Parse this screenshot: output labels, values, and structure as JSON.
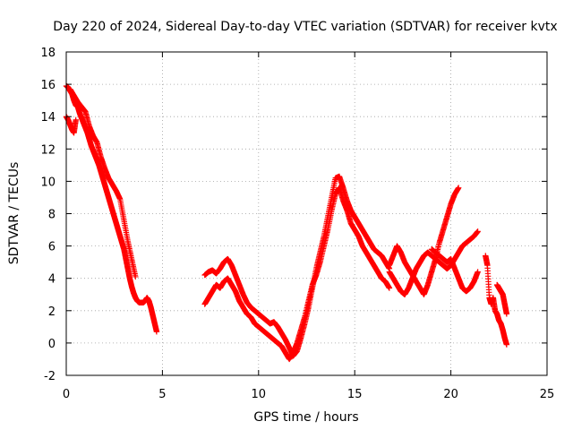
{
  "chart_data": {
    "type": "scatter",
    "title": "Day 220 of 2024, Sidereal Day-to-day VTEC variation (SDTVAR) for receiver kvtx",
    "xlabel": "GPS time / hours",
    "ylabel": "SDTVAR / TECUs",
    "xlim": [
      0,
      25
    ],
    "ylim": [
      -2,
      18
    ],
    "xticks": [
      0,
      5,
      10,
      15,
      20,
      25
    ],
    "yticks": [
      -2,
      0,
      2,
      4,
      6,
      8,
      10,
      12,
      14,
      16,
      18
    ],
    "xtick_labels": [
      "0",
      "5",
      "10",
      "15",
      "20",
      "25"
    ],
    "ytick_labels": [
      "-2",
      "0",
      "2",
      "4",
      "6",
      "8",
      "10",
      "12",
      "14",
      "16",
      "18"
    ],
    "grid": true,
    "marker": "+",
    "color": "#ff0000",
    "series": [
      {
        "name": "segment-1",
        "x": [
          0.0,
          0.1,
          0.2,
          0.3,
          0.4,
          0.5,
          0.6,
          0.7,
          0.8,
          0.9,
          1.0,
          1.1,
          1.2,
          1.3,
          1.4,
          1.5,
          1.6,
          1.7,
          1.8,
          1.9,
          2.0,
          2.1,
          2.2,
          2.3,
          2.4,
          2.5,
          2.6,
          2.7,
          2.8,
          2.9,
          3.0,
          3.1,
          3.2,
          3.3,
          3.4,
          3.5,
          3.6,
          3.7,
          3.8,
          3.9,
          4.0,
          4.1,
          4.2,
          4.3,
          4.4,
          4.5,
          4.6,
          4.7
        ],
        "y": [
          15.9,
          15.8,
          15.6,
          15.4,
          15.0,
          14.7,
          14.6,
          14.2,
          13.9,
          13.6,
          13.3,
          13.0,
          12.6,
          12.2,
          11.9,
          11.6,
          11.3,
          11.0,
          10.6,
          10.2,
          9.8,
          9.4,
          9.0,
          8.6,
          8.2,
          7.8,
          7.4,
          7.0,
          6.6,
          6.2,
          5.8,
          5.2,
          4.6,
          4.0,
          3.5,
          3.1,
          2.8,
          2.6,
          2.5,
          2.5,
          2.5,
          2.6,
          2.8,
          2.6,
          2.2,
          1.7,
          1.2,
          0.7
        ]
      },
      {
        "name": "segment-1-upper",
        "x": [
          0.2,
          0.4,
          0.6,
          0.8,
          1.0,
          1.2,
          1.4,
          1.6,
          1.8,
          2.0,
          2.2,
          2.4,
          2.6,
          2.8,
          3.0,
          3.2,
          3.4,
          3.6
        ],
        "y": [
          15.7,
          15.3,
          14.9,
          14.6,
          14.3,
          13.4,
          12.8,
          12.4,
          11.5,
          10.8,
          10.2,
          9.8,
          9.4,
          8.9,
          7.6,
          6.3,
          5.2,
          4.1
        ]
      },
      {
        "name": "segment-1-lower",
        "x": [
          0.0,
          0.1,
          0.2,
          0.3,
          0.4,
          0.5
        ],
        "y": [
          14.0,
          13.8,
          13.5,
          13.2,
          13.0,
          13.8
        ]
      },
      {
        "name": "segment-2",
        "x": [
          7.2,
          7.4,
          7.6,
          7.8,
          8.0,
          8.2,
          8.4,
          8.6,
          8.8,
          9.0,
          9.2,
          9.4,
          9.6,
          9.8,
          10.0,
          10.2,
          10.4,
          10.6,
          10.8,
          11.0,
          11.2,
          11.4,
          11.6,
          11.8,
          12.0,
          12.2,
          12.4,
          12.6,
          12.8,
          13.0,
          13.2,
          13.4,
          13.6,
          13.8,
          14.0,
          14.2,
          14.4,
          14.6,
          14.8,
          15.0,
          15.2,
          15.4,
          15.6,
          15.8,
          16.0,
          16.2,
          16.4,
          16.6,
          16.8
        ],
        "y": [
          4.2,
          4.4,
          4.5,
          4.3,
          4.6,
          5.0,
          5.2,
          4.8,
          4.2,
          3.6,
          3.0,
          2.5,
          2.2,
          2.0,
          1.8,
          1.6,
          1.4,
          1.2,
          1.3,
          1.0,
          0.6,
          0.2,
          -0.3,
          -0.8,
          -0.5,
          0.3,
          1.2,
          2.2,
          3.4,
          4.6,
          5.6,
          6.6,
          7.8,
          9.0,
          10.2,
          10.3,
          9.6,
          8.8,
          8.2,
          7.8,
          7.4,
          7.0,
          6.6,
          6.2,
          5.8,
          5.6,
          5.4,
          5.0,
          4.6
        ]
      },
      {
        "name": "segment-2-lower",
        "x": [
          7.2,
          7.4,
          7.6,
          7.8,
          8.0,
          8.2,
          8.4,
          8.6,
          8.8,
          9.0,
          9.2,
          9.4,
          9.6,
          9.8,
          10.0,
          10.2,
          10.4,
          10.6,
          10.8,
          11.0,
          11.2,
          11.4,
          11.6,
          11.8,
          12.0,
          12.2,
          12.4,
          12.6,
          12.8,
          13.0,
          13.2,
          13.4,
          13.6,
          13.8,
          14.0,
          14.2,
          14.4,
          14.6,
          14.8,
          15.0,
          15.2,
          15.4,
          15.6,
          15.8,
          16.0,
          16.2,
          16.4,
          16.6,
          16.8
        ],
        "y": [
          2.4,
          2.8,
          3.2,
          3.6,
          3.4,
          3.8,
          4.0,
          3.6,
          3.2,
          2.6,
          2.2,
          1.8,
          1.6,
          1.2,
          1.0,
          0.8,
          0.6,
          0.4,
          0.2,
          0.0,
          -0.2,
          -0.6,
          -1.0,
          -0.6,
          0.0,
          0.8,
          1.6,
          2.6,
          3.6,
          4.2,
          5.0,
          6.0,
          7.0,
          8.2,
          9.2,
          9.6,
          8.8,
          8.2,
          7.4,
          7.0,
          6.6,
          6.0,
          5.6,
          5.2,
          4.8,
          4.4,
          4.0,
          3.8,
          3.4
        ]
      },
      {
        "name": "segment-3",
        "x": [
          16.8,
          17.0,
          17.2,
          17.4,
          17.6,
          17.8,
          18.0,
          18.2,
          18.4,
          18.6,
          18.8,
          19.0,
          19.2,
          19.4,
          19.6,
          19.8,
          20.0,
          20.2,
          20.4
        ],
        "y": [
          4.8,
          5.4,
          6.0,
          5.6,
          5.0,
          4.6,
          4.2,
          3.8,
          3.4,
          3.0,
          3.6,
          4.4,
          5.2,
          6.2,
          7.0,
          7.8,
          8.6,
          9.2,
          9.6
        ]
      },
      {
        "name": "segment-3-lower",
        "x": [
          16.8,
          17.0,
          17.2,
          17.4,
          17.6,
          17.8,
          18.0,
          18.2,
          18.4,
          18.6,
          18.8,
          19.0,
          19.2,
          19.4,
          19.6,
          19.8,
          20.0,
          20.2,
          20.4,
          20.6,
          20.8,
          21.0,
          21.2,
          21.4
        ],
        "y": [
          4.4,
          4.0,
          3.6,
          3.2,
          3.0,
          3.4,
          4.0,
          4.6,
          5.0,
          5.4,
          5.6,
          5.4,
          5.2,
          5.0,
          4.8,
          4.6,
          4.8,
          5.2,
          5.6,
          6.0,
          6.2,
          6.4,
          6.6,
          6.9
        ]
      },
      {
        "name": "segment-3-loop",
        "x": [
          19.0,
          19.2,
          19.4,
          19.6,
          19.8,
          20.0,
          20.2,
          20.4,
          20.6,
          20.8,
          21.0,
          21.2,
          21.4
        ],
        "y": [
          5.8,
          5.6,
          5.4,
          5.2,
          5.0,
          5.2,
          4.6,
          4.0,
          3.4,
          3.2,
          3.4,
          3.8,
          4.4
        ]
      },
      {
        "name": "segment-4",
        "x": [
          21.8,
          21.9,
          22.0,
          22.1,
          22.2,
          22.3,
          22.4,
          22.5,
          22.6,
          22.7,
          22.8,
          22.9
        ],
        "y": [
          5.4,
          4.8,
          2.8,
          2.4,
          2.8,
          2.0,
          1.8,
          1.4,
          1.2,
          0.8,
          0.3,
          -0.1
        ]
      },
      {
        "name": "segment-4-upper",
        "x": [
          22.4,
          22.5,
          22.6,
          22.7,
          22.8,
          22.9
        ],
        "y": [
          3.6,
          3.4,
          3.2,
          3.0,
          2.4,
          1.8
        ]
      }
    ]
  }
}
